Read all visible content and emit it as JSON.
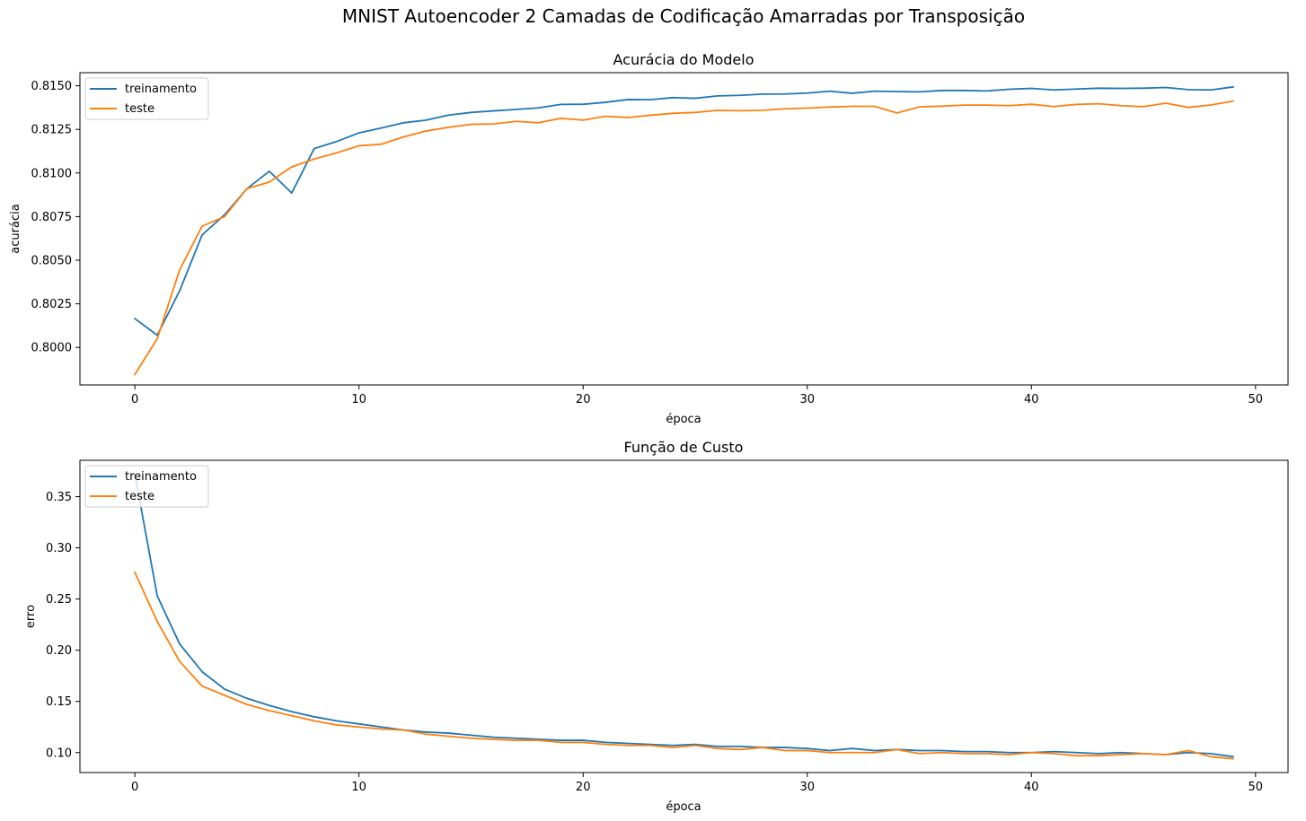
{
  "suptitle": "MNIST Autoencoder 2 Camadas de Codificação Amarradas por Transposição",
  "colors": {
    "train": "#1f77b4",
    "test": "#ff7f0e"
  },
  "chart_data": [
    {
      "type": "line",
      "title": "Acurácia do Modelo",
      "xlabel": "época",
      "ylabel": "acurácia",
      "xlim": [
        -2.45,
        51.45
      ],
      "ylim": [
        0.79785,
        0.81575
      ],
      "xticks": [
        0,
        10,
        20,
        30,
        40,
        50
      ],
      "xtick_labels": [
        "0",
        "10",
        "20",
        "30",
        "40",
        "50"
      ],
      "yticks": [
        0.8,
        0.8025,
        0.805,
        0.8075,
        0.81,
        0.8125,
        0.815
      ],
      "ytick_labels": [
        "0.8000",
        "0.8025",
        "0.8050",
        "0.8075",
        "0.8100",
        "0.8125",
        "0.8150"
      ],
      "legend": "upper-left",
      "grid": false,
      "x": [
        0,
        1,
        2,
        3,
        4,
        5,
        6,
        7,
        8,
        9,
        10,
        11,
        12,
        13,
        14,
        15,
        16,
        17,
        18,
        19,
        20,
        21,
        22,
        23,
        24,
        25,
        26,
        27,
        28,
        29,
        30,
        31,
        32,
        33,
        34,
        35,
        36,
        37,
        38,
        39,
        40,
        41,
        42,
        43,
        44,
        45,
        46,
        47,
        48,
        49
      ],
      "series": [
        {
          "name": "treinamento",
          "color": "#1f77b4",
          "values": [
            0.80165,
            0.8007,
            0.80325,
            0.80645,
            0.8076,
            0.8091,
            0.8101,
            0.80885,
            0.8114,
            0.8118,
            0.8123,
            0.81258,
            0.81288,
            0.81303,
            0.81332,
            0.81347,
            0.81356,
            0.81364,
            0.81373,
            0.81393,
            0.81394,
            0.81405,
            0.81421,
            0.8142,
            0.81432,
            0.81428,
            0.81442,
            0.81445,
            0.81452,
            0.81453,
            0.81458,
            0.81469,
            0.81457,
            0.81469,
            0.81467,
            0.81465,
            0.81473,
            0.81473,
            0.8147,
            0.8148,
            0.81485,
            0.81476,
            0.81481,
            0.81486,
            0.81485,
            0.81486,
            0.8149,
            0.81478,
            0.81476,
            0.81493
          ]
        },
        {
          "name": "teste",
          "color": "#ff7f0e",
          "values": [
            0.79845,
            0.8005,
            0.80445,
            0.80695,
            0.8075,
            0.8091,
            0.80948,
            0.81035,
            0.8108,
            0.81115,
            0.81156,
            0.81165,
            0.81207,
            0.81241,
            0.81262,
            0.81279,
            0.81281,
            0.81296,
            0.81288,
            0.81313,
            0.81303,
            0.81325,
            0.81318,
            0.81331,
            0.81342,
            0.81347,
            0.81359,
            0.81357,
            0.81359,
            0.81368,
            0.81372,
            0.81378,
            0.81382,
            0.81382,
            0.81344,
            0.81379,
            0.81383,
            0.81389,
            0.81389,
            0.81386,
            0.81394,
            0.81381,
            0.81393,
            0.81397,
            0.81386,
            0.8138,
            0.814,
            0.81376,
            0.8139,
            0.81412
          ]
        }
      ]
    },
    {
      "type": "line",
      "title": "Função de Custo",
      "xlabel": "época",
      "ylabel": "erro",
      "xlim": [
        -2.45,
        51.45
      ],
      "ylim": [
        0.0805,
        0.3855
      ],
      "xticks": [
        0,
        10,
        20,
        30,
        40,
        50
      ],
      "xtick_labels": [
        "0",
        "10",
        "20",
        "30",
        "40",
        "50"
      ],
      "yticks": [
        0.1,
        0.15,
        0.2,
        0.25,
        0.3,
        0.35
      ],
      "ytick_labels": [
        "0.10",
        "0.15",
        "0.20",
        "0.25",
        "0.30",
        "0.35"
      ],
      "legend": "upper-left",
      "grid": false,
      "x": [
        0,
        1,
        2,
        3,
        4,
        5,
        6,
        7,
        8,
        9,
        10,
        11,
        12,
        13,
        14,
        15,
        16,
        17,
        18,
        19,
        20,
        21,
        22,
        23,
        24,
        25,
        26,
        27,
        28,
        29,
        30,
        31,
        32,
        33,
        34,
        35,
        36,
        37,
        38,
        39,
        40,
        41,
        42,
        43,
        44,
        45,
        46,
        47,
        48,
        49
      ],
      "series": [
        {
          "name": "treinamento",
          "color": "#1f77b4",
          "values": [
            0.372,
            0.253,
            0.206,
            0.179,
            0.162,
            0.153,
            0.146,
            0.14,
            0.135,
            0.131,
            0.128,
            0.125,
            0.122,
            0.12,
            0.119,
            0.117,
            0.115,
            0.114,
            0.113,
            0.112,
            0.112,
            0.11,
            0.109,
            0.108,
            0.107,
            0.108,
            0.106,
            0.106,
            0.105,
            0.105,
            0.104,
            0.102,
            0.104,
            0.102,
            0.103,
            0.102,
            0.102,
            0.101,
            0.101,
            0.1,
            0.1,
            0.101,
            0.1,
            0.099,
            0.1,
            0.099,
            0.098,
            0.1,
            0.099,
            0.096
          ]
        },
        {
          "name": "teste",
          "color": "#ff7f0e",
          "values": [
            0.276,
            0.228,
            0.189,
            0.165,
            0.156,
            0.147,
            0.141,
            0.136,
            0.131,
            0.127,
            0.125,
            0.123,
            0.122,
            0.118,
            0.116,
            0.114,
            0.113,
            0.112,
            0.112,
            0.11,
            0.11,
            0.108,
            0.107,
            0.107,
            0.105,
            0.107,
            0.104,
            0.103,
            0.105,
            0.102,
            0.102,
            0.1,
            0.1,
            0.1,
            0.103,
            0.099,
            0.1,
            0.099,
            0.099,
            0.098,
            0.1,
            0.099,
            0.097,
            0.097,
            0.098,
            0.099,
            0.098,
            0.102,
            0.096,
            0.094
          ]
        }
      ]
    }
  ]
}
